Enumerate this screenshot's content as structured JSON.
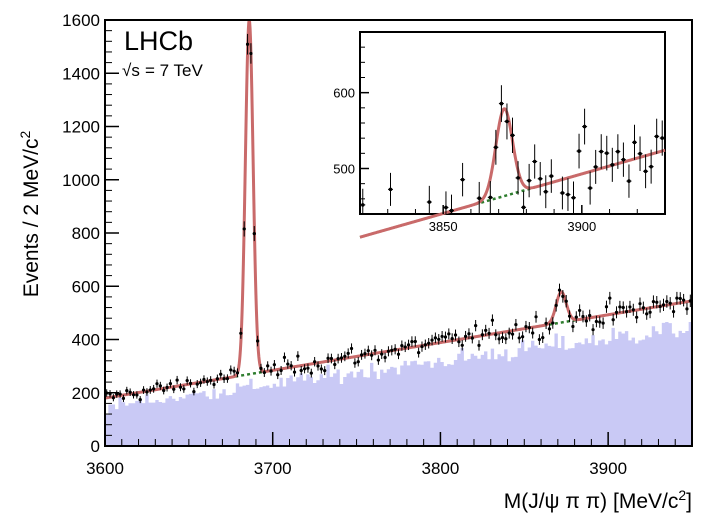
{
  "chart_data": {
    "type": "histogram-with-fit",
    "experiment_label": "LHCb",
    "energy_label_sqrt": "√s",
    "energy_label_value": "= 7 TeV",
    "xlabel_main": "M(J/ψ π π) [MeV/c",
    "xlabel_sup": "2",
    "xlabel_end": "]",
    "ylabel_main": "Events / 2 MeV/c",
    "ylabel_sup": "2",
    "xlim": [
      3600,
      3950
    ],
    "ylim": [
      0,
      1600
    ],
    "bin_width": 2,
    "xticks": [
      "3600",
      "3700",
      "3800",
      "3900"
    ],
    "yticks": [
      "0",
      "200",
      "400",
      "600",
      "800",
      "1000",
      "1200",
      "1400",
      "1600"
    ],
    "background_linear": {
      "at_3600": 180,
      "at_3950": 545
    },
    "psi2S_peak": {
      "mass": 3686,
      "height": 1330,
      "sigma": 2.3
    },
    "x3872_peak": {
      "mass": 3872,
      "height": 115,
      "sigma": 3.0
    },
    "histogram_fraction": 0.82,
    "colors": {
      "fit_total": "#c96a6a",
      "fit_background": "#2e7d2e",
      "histogram": "#c9c9f5",
      "data_points": "#000000",
      "frame": "#000000"
    },
    "inset": {
      "xlim": [
        3820,
        3930
      ],
      "ylim": [
        440,
        680
      ],
      "xticks": [
        "3850",
        "3900"
      ],
      "yticks": [
        "500",
        "600"
      ]
    }
  }
}
